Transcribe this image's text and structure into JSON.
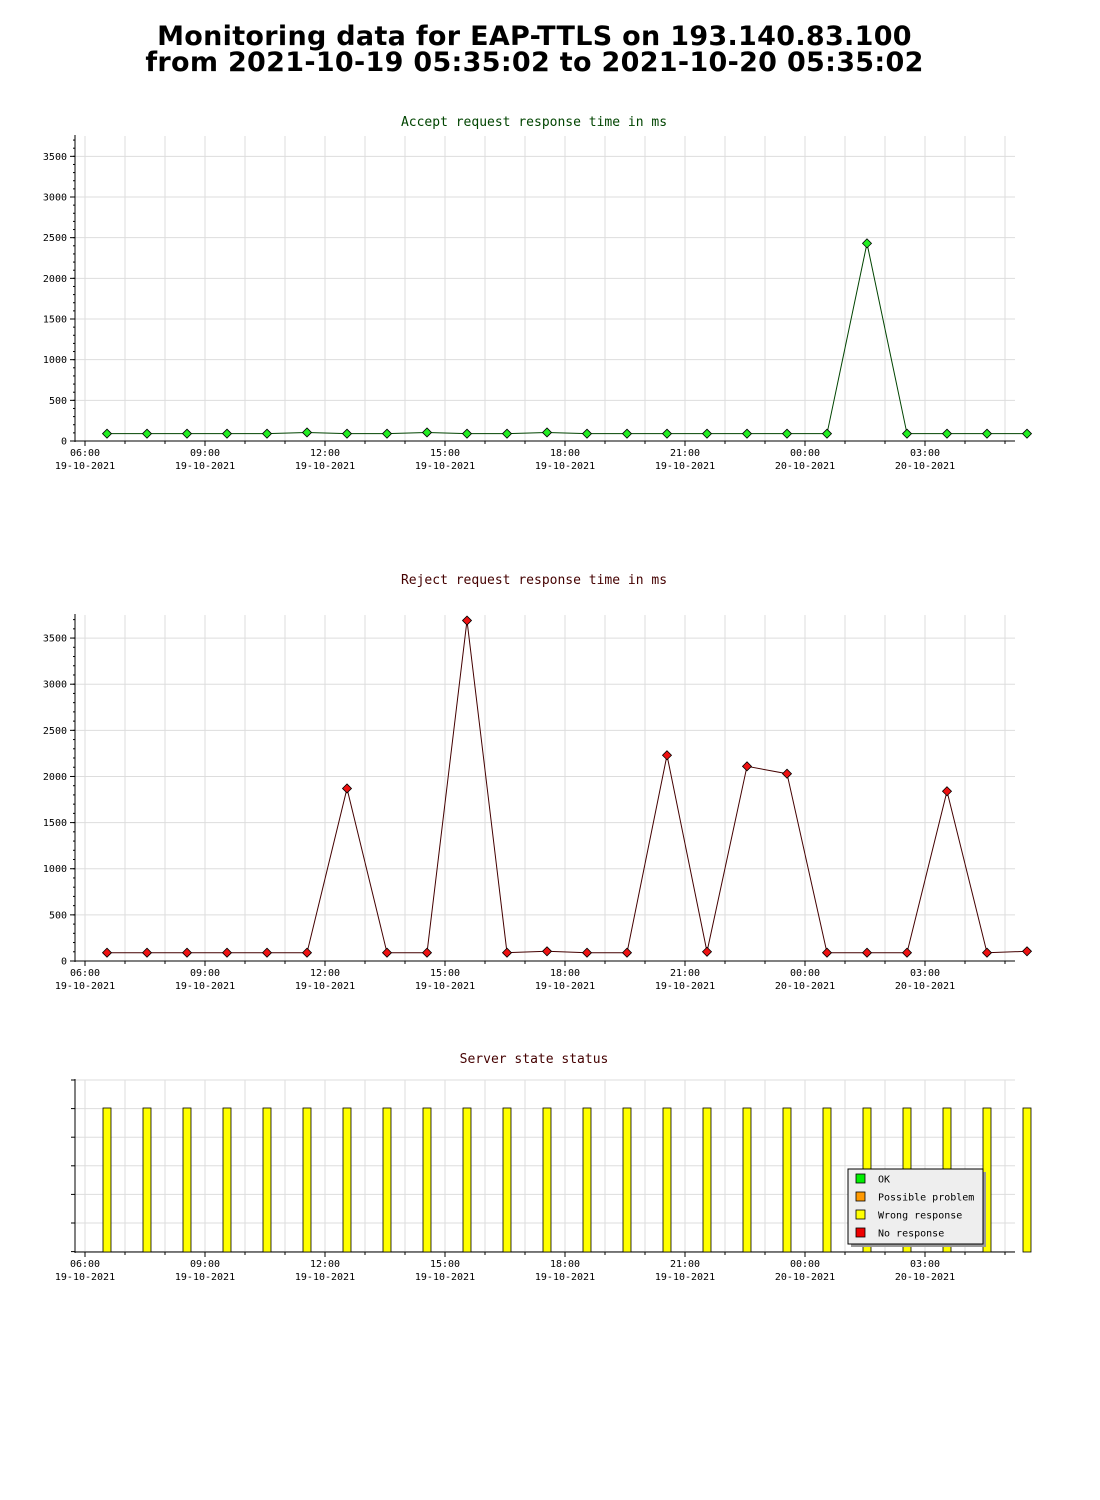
{
  "page": {
    "title_line1": "Monitoring data for EAP-TTLS on 193.140.83.100",
    "title_line2": "from 2021-10-19 05:35:02 to 2021-10-20 05:35:02"
  },
  "colors": {
    "accept_title": "#004400",
    "reject_title": "#440000",
    "status_title": "#440000",
    "accept_line": "#004400",
    "reject_line": "#440000",
    "accept_marker": "#22ee22",
    "reject_marker": "#ee1111",
    "status_bar": "#ffff00",
    "grid": "#dddddd",
    "legend_ok": "#00ee00",
    "legend_possible_problem": "#ff9900",
    "legend_wrong_response": "#ffff00",
    "legend_no_response": "#ee0000"
  },
  "x_ticks": [
    {
      "time": "06:00",
      "date": "19-10-2021"
    },
    {
      "time": "09:00",
      "date": "19-10-2021"
    },
    {
      "time": "12:00",
      "date": "19-10-2021"
    },
    {
      "time": "15:00",
      "date": "19-10-2021"
    },
    {
      "time": "18:00",
      "date": "19-10-2021"
    },
    {
      "time": "21:00",
      "date": "19-10-2021"
    },
    {
      "time": "00:00",
      "date": "20-10-2021"
    },
    {
      "time": "03:00",
      "date": "20-10-2021"
    }
  ],
  "chart_data": [
    {
      "type": "line",
      "title": "Accept request response time in ms",
      "ylim": [
        0,
        3750
      ],
      "yticks": [
        0,
        500,
        1000,
        1500,
        2000,
        2500,
        3000,
        3500
      ],
      "xlim_hours": [
        5.75,
        29.25
      ],
      "grid": true,
      "x_hours": [
        6.25,
        7.25,
        8.25,
        9.25,
        10.25,
        11.25,
        12.25,
        13.25,
        14.25,
        15.25,
        16.25,
        17.25,
        18.25,
        19.25,
        20.25,
        21.25,
        22.25,
        23.25,
        24.25,
        25.25,
        26.25,
        27.25,
        28.25,
        29.25
      ],
      "values": [
        90,
        90,
        90,
        90,
        90,
        105,
        90,
        90,
        105,
        90,
        90,
        105,
        90,
        90,
        90,
        90,
        90,
        90,
        90,
        2430,
        90,
        90,
        90,
        90
      ]
    },
    {
      "type": "line",
      "title": "Reject request response time in ms",
      "ylim": [
        0,
        3750
      ],
      "yticks": [
        0,
        500,
        1000,
        1500,
        2000,
        2500,
        3000,
        3500
      ],
      "xlim_hours": [
        5.75,
        29.25
      ],
      "grid": true,
      "x_hours": [
        6.25,
        7.25,
        8.25,
        9.25,
        10.25,
        11.25,
        12.25,
        13.25,
        14.25,
        15.25,
        16.25,
        17.25,
        18.25,
        19.25,
        20.25,
        21.25,
        22.25,
        23.25,
        24.25,
        25.25,
        26.25,
        27.25,
        28.25,
        29.25
      ],
      "values": [
        90,
        90,
        90,
        90,
        90,
        90,
        1870,
        90,
        90,
        3690,
        90,
        105,
        90,
        90,
        2230,
        100,
        2110,
        2030,
        90,
        90,
        90,
        1840,
        90,
        105
      ]
    },
    {
      "type": "bar",
      "title": "Server state status",
      "xlim_hours": [
        5.75,
        29.25
      ],
      "grid": true,
      "x_hours": [
        6.25,
        7.25,
        8.25,
        9.25,
        10.25,
        11.25,
        12.25,
        13.25,
        14.25,
        15.25,
        16.25,
        17.25,
        18.25,
        19.25,
        20.25,
        21.25,
        22.25,
        23.25,
        24.25,
        25.25,
        26.25,
        27.25,
        28.25,
        29.25
      ],
      "states": [
        "Wrong response",
        "Wrong response",
        "Wrong response",
        "Wrong response",
        "Wrong response",
        "Wrong response",
        "Wrong response",
        "Wrong response",
        "Wrong response",
        "Wrong response",
        "Wrong response",
        "Wrong response",
        "Wrong response",
        "Wrong response",
        "Wrong response",
        "Wrong response",
        "Wrong response",
        "Wrong response",
        "Wrong response",
        "Wrong response",
        "Wrong response",
        "Wrong response",
        "Wrong response",
        "Wrong response"
      ],
      "legend_position": "bottom-right",
      "legend": [
        {
          "label": "OK",
          "color": "#00ee00"
        },
        {
          "label": "Possible problem",
          "color": "#ff9900"
        },
        {
          "label": "Wrong response",
          "color": "#ffff00"
        },
        {
          "label": "No response",
          "color": "#ee0000"
        }
      ]
    }
  ]
}
